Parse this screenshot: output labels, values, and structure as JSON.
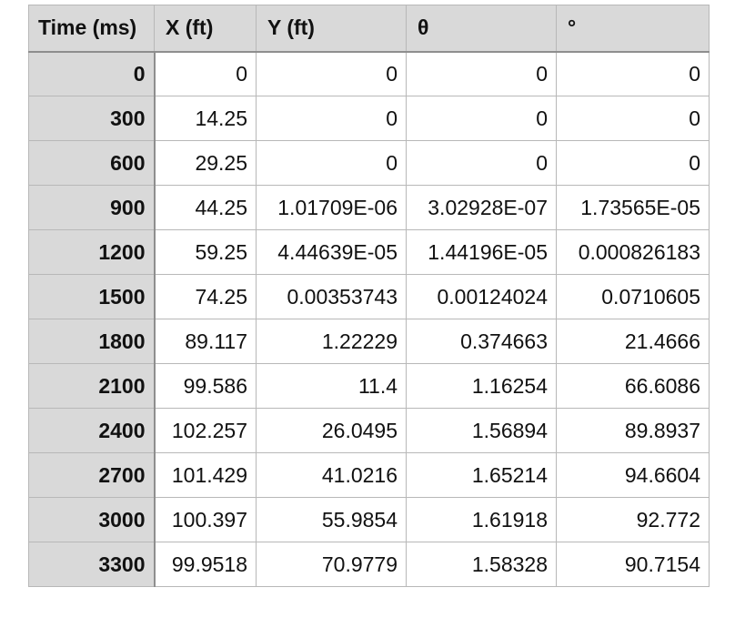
{
  "table": {
    "headers": [
      "Time (ms)",
      "X (ft)",
      "Y (ft)",
      "θ",
      "°"
    ],
    "rows": [
      [
        "0",
        "0",
        "0",
        "0",
        "0"
      ],
      [
        "300",
        "14.25",
        "0",
        "0",
        "0"
      ],
      [
        "600",
        "29.25",
        "0",
        "0",
        "0"
      ],
      [
        "900",
        "44.25",
        "1.01709E-06",
        "3.02928E-07",
        "1.73565E-05"
      ],
      [
        "1200",
        "59.25",
        "4.44639E-05",
        "1.44196E-05",
        "0.000826183"
      ],
      [
        "1500",
        "74.25",
        "0.00353743",
        "0.00124024",
        "0.0710605"
      ],
      [
        "1800",
        "89.117",
        "1.22229",
        "0.374663",
        "21.4666"
      ],
      [
        "2100",
        "99.586",
        "11.4",
        "1.16254",
        "66.6086"
      ],
      [
        "2400",
        "102.257",
        "26.0495",
        "1.56894",
        "89.8937"
      ],
      [
        "2700",
        "101.429",
        "41.0216",
        "1.65214",
        "94.6604"
      ],
      [
        "3000",
        "100.397",
        "55.9854",
        "1.61918",
        "92.772"
      ],
      [
        "3300",
        "99.9518",
        "70.9779",
        "1.58328",
        "90.7154"
      ]
    ]
  },
  "colors": {
    "header_bg": "#d9d9d9",
    "grid_line": "#b8b8b8",
    "cell_bg": "#ffffff"
  }
}
